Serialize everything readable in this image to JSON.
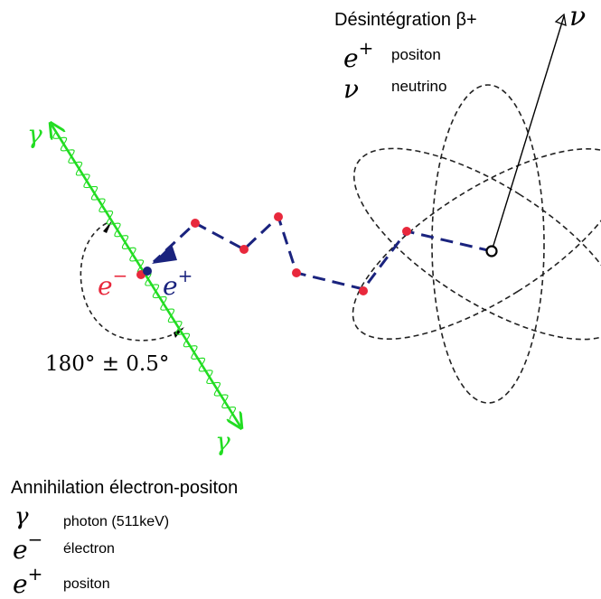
{
  "legend_top": {
    "title": "Désintégration β+",
    "items": [
      {
        "symbol": "e",
        "sup": "+",
        "label": "positon"
      },
      {
        "symbol": "ν",
        "sup": "",
        "label": "neutrino"
      }
    ]
  },
  "legend_bottom": {
    "title": "Annihilation électron-positon",
    "items": [
      {
        "symbol": "γ",
        "sup": "",
        "label": "photon (511keV)"
      },
      {
        "symbol": "e",
        "sup": "−",
        "label": "électron"
      },
      {
        "symbol": "e",
        "sup": "+",
        "label": "positon"
      }
    ]
  },
  "diagram": {
    "gamma_symbol": "γ",
    "neutrino_symbol": "ν",
    "electron_label": {
      "symbol": "e",
      "sup": "−"
    },
    "positron_label": {
      "symbol": "e",
      "sup": "+"
    },
    "angle_label": "180° ± 0.5°",
    "colors": {
      "photon": "#22dd22",
      "electron": "#e8283c",
      "positron_path": "#1a237e",
      "orbit": "#222222"
    }
  }
}
